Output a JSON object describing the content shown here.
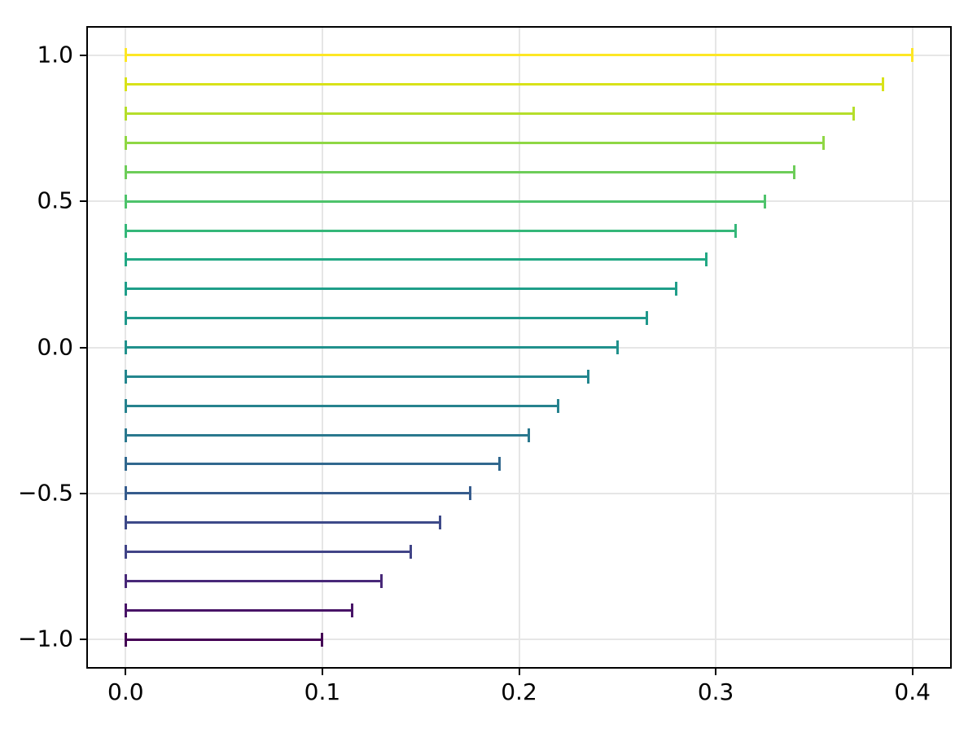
{
  "chart_data": {
    "type": "bar",
    "subtype": "horizontal-lines-with-end-caps",
    "colormap": "viridis",
    "title": "",
    "xlabel": "",
    "ylabel": "",
    "grid": true,
    "legend_position": "none",
    "xlim": [
      -0.02,
      0.42
    ],
    "ylim": [
      -1.1,
      1.1
    ],
    "x_ticks": {
      "values": [
        0.0,
        0.1,
        0.2,
        0.3,
        0.4
      ],
      "labels": [
        "0.0",
        "0.1",
        "0.2",
        "0.3",
        "0.4"
      ]
    },
    "y_ticks": {
      "values": [
        1.0,
        0.5,
        0.0,
        -0.5,
        -1.0
      ],
      "labels": [
        "1.0",
        "0.5",
        "0.0",
        "−0.5",
        "−1.0"
      ]
    },
    "series": [
      {
        "y": 1.0,
        "x_start": 0.0,
        "x_end": 0.4,
        "color": "#fde725"
      },
      {
        "y": 0.9,
        "x_start": 0.0,
        "x_end": 0.385,
        "color": "#d8e219"
      },
      {
        "y": 0.8,
        "x_start": 0.0,
        "x_end": 0.37,
        "color": "#b5de2b"
      },
      {
        "y": 0.7,
        "x_start": 0.0,
        "x_end": 0.355,
        "color": "#8fd744"
      },
      {
        "y": 0.6,
        "x_start": 0.0,
        "x_end": 0.34,
        "color": "#6dcd59"
      },
      {
        "y": 0.5,
        "x_start": 0.0,
        "x_end": 0.325,
        "color": "#4ec36b"
      },
      {
        "y": 0.4,
        "x_start": 0.0,
        "x_end": 0.31,
        "color": "#35b779"
      },
      {
        "y": 0.3,
        "x_start": 0.0,
        "x_end": 0.295,
        "color": "#22a884"
      },
      {
        "y": 0.2,
        "x_start": 0.0,
        "x_end": 0.28,
        "color": "#1f9e89"
      },
      {
        "y": 0.1,
        "x_start": 0.0,
        "x_end": 0.265,
        "color": "#1f988b"
      },
      {
        "y": 0.0,
        "x_start": 0.0,
        "x_end": 0.25,
        "color": "#21918c"
      },
      {
        "y": -0.1,
        "x_start": 0.0,
        "x_end": 0.235,
        "color": "#24868e"
      },
      {
        "y": -0.2,
        "x_start": 0.0,
        "x_end": 0.22,
        "color": "#26828e"
      },
      {
        "y": -0.3,
        "x_start": 0.0,
        "x_end": 0.205,
        "color": "#2a788e"
      },
      {
        "y": -0.4,
        "x_start": 0.0,
        "x_end": 0.19,
        "color": "#31688e"
      },
      {
        "y": -0.5,
        "x_start": 0.0,
        "x_end": 0.175,
        "color": "#365c8d"
      },
      {
        "y": -0.6,
        "x_start": 0.0,
        "x_end": 0.16,
        "color": "#3e4a89"
      },
      {
        "y": -0.7,
        "x_start": 0.0,
        "x_end": 0.145,
        "color": "#414487"
      },
      {
        "y": -0.8,
        "x_start": 0.0,
        "x_end": 0.13,
        "color": "#482878"
      },
      {
        "y": -0.9,
        "x_start": 0.0,
        "x_end": 0.115,
        "color": "#481467"
      },
      {
        "y": -1.0,
        "x_start": 0.0,
        "x_end": 0.1,
        "color": "#440154"
      }
    ]
  },
  "style": {
    "background": "#ffffff",
    "grid_color": "#e6e6e6",
    "spine_color": "#000000",
    "tick_color": "#000000",
    "tick_label_color": "#000000"
  }
}
